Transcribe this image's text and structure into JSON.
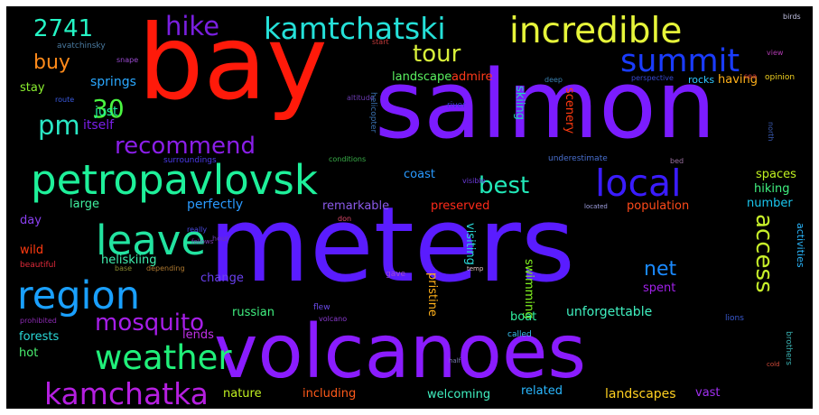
{
  "words": [
    {
      "text": "salmon",
      "color": "#7b1cff"
    },
    {
      "text": "meters",
      "color": "#5a1cff"
    },
    {
      "text": "bay",
      "color": "#ff1a0a"
    },
    {
      "text": "volcanoes",
      "color": "#8a1cff"
    },
    {
      "text": "petropavlovsk",
      "color": "#1ef09a"
    },
    {
      "text": "kamtchatski",
      "color": "#25e0d8"
    },
    {
      "text": "incredible",
      "color": "#e6f53a"
    },
    {
      "text": "region",
      "color": "#1aa0ff"
    },
    {
      "text": "leave",
      "color": "#22e3a0"
    },
    {
      "text": "weather",
      "color": "#20f07a"
    },
    {
      "text": "local",
      "color": "#3a1cff"
    },
    {
      "text": "summit",
      "color": "#1a3cff"
    },
    {
      "text": "kamchatka",
      "color": "#b51fe0"
    },
    {
      "text": "hike",
      "color": "#7a1fe0"
    },
    {
      "text": "tour",
      "color": "#d8f03a"
    },
    {
      "text": "recommend",
      "color": "#8a1ee8"
    },
    {
      "text": "mosquito",
      "color": "#a61ee8"
    },
    {
      "text": "access",
      "color": "#c8f02a"
    },
    {
      "text": "best",
      "color": "#22e8b8"
    },
    {
      "text": "2741",
      "color": "#25f5c5"
    },
    {
      "text": "pm",
      "color": "#2ae8c5"
    },
    {
      "text": "30",
      "color": "#4af540"
    },
    {
      "text": "buy",
      "color": "#ff8a1a"
    },
    {
      "text": "net",
      "color": "#1a8aff"
    },
    {
      "text": "springs",
      "color": "#2aa8ff"
    },
    {
      "text": "stay",
      "color": "#8af030"
    },
    {
      "text": "just",
      "color": "#20f0a0"
    },
    {
      "text": "itself",
      "color": "#7a1ee8"
    },
    {
      "text": "admire",
      "color": "#ff3a1a"
    },
    {
      "text": "having",
      "color": "#ffb01a"
    },
    {
      "text": "landscape",
      "color": "#5af060"
    },
    {
      "text": "skiing",
      "color": "#20d8b8"
    },
    {
      "text": "scenery",
      "color": "#ff3a10"
    },
    {
      "text": "rocks",
      "color": "#30c8ff"
    },
    {
      "text": "opinion",
      "color": "#f0d020"
    },
    {
      "text": "coast",
      "color": "#2a9aff"
    },
    {
      "text": "spaces",
      "color": "#c0f020"
    },
    {
      "text": "hiking",
      "color": "#40f080"
    },
    {
      "text": "number",
      "color": "#1ac8f0"
    },
    {
      "text": "large",
      "color": "#40f0a0"
    },
    {
      "text": "perfectly",
      "color": "#2a9aff"
    },
    {
      "text": "remarkable",
      "color": "#8a5ae8"
    },
    {
      "text": "preserved",
      "color": "#ff2a1a"
    },
    {
      "text": "population",
      "color": "#ff4a1a"
    },
    {
      "text": "day",
      "color": "#8a40f0"
    },
    {
      "text": "wild",
      "color": "#ff3a10"
    },
    {
      "text": "heliskiing",
      "color": "#40f0b0"
    },
    {
      "text": "change",
      "color": "#6a40f0"
    },
    {
      "text": "visiting",
      "color": "#2ad8d8"
    },
    {
      "text": "pristine",
      "color": "#ffb01a"
    },
    {
      "text": "swimming",
      "color": "#80f020"
    },
    {
      "text": "spent",
      "color": "#a020e8"
    },
    {
      "text": "activities",
      "color": "#2ab8ff"
    },
    {
      "text": "russian",
      "color": "#40f080"
    },
    {
      "text": "boat",
      "color": "#30f0a0"
    },
    {
      "text": "unforgettable",
      "color": "#40f0c0"
    },
    {
      "text": "forests",
      "color": "#2ad8d8"
    },
    {
      "text": "hot",
      "color": "#4af070"
    },
    {
      "text": "lends",
      "color": "#c030e8"
    },
    {
      "text": "nature",
      "color": "#c0f020"
    },
    {
      "text": "including",
      "color": "#ff5a1a"
    },
    {
      "text": "welcoming",
      "color": "#40f0c0"
    },
    {
      "text": "related",
      "color": "#2ab8ff"
    },
    {
      "text": "landscapes",
      "color": "#ffd020"
    },
    {
      "text": "vast",
      "color": "#a030f0"
    },
    {
      "text": "called",
      "color": "#3ac0f0"
    },
    {
      "text": "beautiful",
      "color": "#e02a3a"
    },
    {
      "text": "avatchinsky",
      "color": "#4a7aa0"
    },
    {
      "text": "snape",
      "color": "#9a4ad0"
    },
    {
      "text": "start",
      "color": "#c03a3a"
    },
    {
      "text": "altitude",
      "color": "#6a3ab0"
    },
    {
      "text": "route",
      "color": "#3a5ae0"
    },
    {
      "text": "surroundings",
      "color": "#4a3ae8"
    },
    {
      "text": "conditions",
      "color": "#3ab04a"
    },
    {
      "text": "helicopter",
      "color": "#3a70b0"
    },
    {
      "text": "underestimate",
      "color": "#4a70d0"
    },
    {
      "text": "visible",
      "color": "#6a3ad8"
    },
    {
      "text": "perspective",
      "color": "#3a4ad0"
    },
    {
      "text": "river",
      "color": "#3a3ad0"
    },
    {
      "text": "deep",
      "color": "#3a80b0"
    },
    {
      "text": "bed",
      "color": "#9a70a0"
    },
    {
      "text": "sea",
      "color": "#c83a3a"
    },
    {
      "text": "north",
      "color": "#3a5ab0"
    },
    {
      "text": "don",
      "color": "#e04a6a"
    },
    {
      "text": "located",
      "color": "#a0a0e0"
    },
    {
      "text": "really",
      "color": "#4a4ae0"
    },
    {
      "text": "follows",
      "color": "#7a3ab0"
    },
    {
      "text": "base",
      "color": "#8a8a30"
    },
    {
      "text": "depending",
      "color": "#b07a30"
    },
    {
      "text": "hour",
      "color": "#6a3ab0"
    },
    {
      "text": "gave",
      "color": "#a04ad0"
    },
    {
      "text": "prohibited",
      "color": "#8a2ab0"
    },
    {
      "text": "flew",
      "color": "#6a4ae8"
    },
    {
      "text": "volcano",
      "color": "#8a3ad0"
    },
    {
      "text": "half",
      "color": "#7a7ab0"
    },
    {
      "text": "brothers",
      "color": "#3ab0b0"
    },
    {
      "text": "lions",
      "color": "#3a5ad0"
    },
    {
      "text": "temp",
      "color": "#e0c0c0"
    },
    {
      "text": "birds",
      "color": "#c0c0e0"
    },
    {
      "text": "cold",
      "color": "#d04a3a"
    },
    {
      "text": "view",
      "color": "#b03ab0"
    }
  ]
}
